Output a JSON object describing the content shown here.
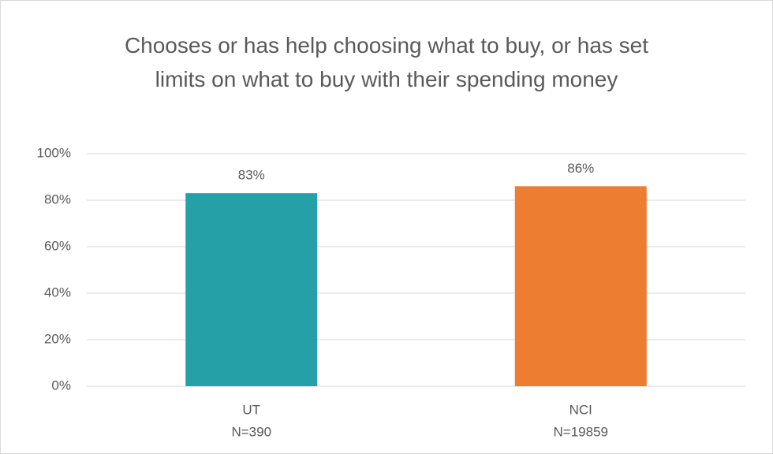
{
  "chart_data": {
    "type": "bar",
    "title": "Chooses or has help choosing what to buy, or has set limits on what to buy with their spending money",
    "categories": [
      [
        "UT",
        "N=390"
      ],
      [
        "NCI",
        "N=19859"
      ]
    ],
    "values": [
      83,
      86
    ],
    "value_labels": [
      "83%",
      "86%"
    ],
    "colors": [
      "#26A0A7",
      "#ED7D31"
    ],
    "ylim": [
      0,
      100
    ],
    "yticks": [
      {
        "value": 0,
        "label": "0%"
      },
      {
        "value": 20,
        "label": "20%"
      },
      {
        "value": 40,
        "label": "40%"
      },
      {
        "value": 60,
        "label": "60%"
      },
      {
        "value": 80,
        "label": "80%"
      },
      {
        "value": 100,
        "label": "100%"
      }
    ],
    "grid": true
  }
}
